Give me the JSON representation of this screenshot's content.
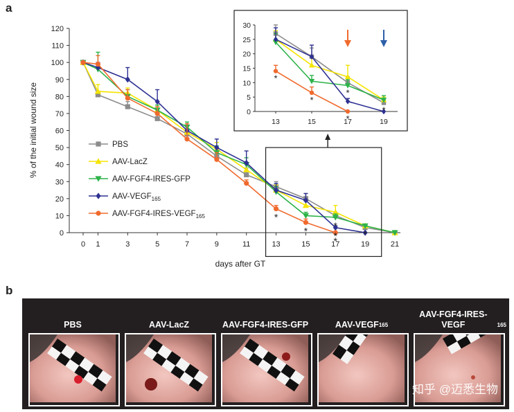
{
  "panel_letters": {
    "a": "a",
    "b": "b"
  },
  "chart_data": [
    {
      "type": "line",
      "xlabel": "days after GT",
      "ylabel": "% of the initial wound size",
      "x": [
        0,
        1,
        3,
        5,
        7,
        9,
        11,
        13,
        15,
        17,
        19,
        21
      ],
      "xticks": [
        "0",
        "1",
        "3",
        "5",
        "7",
        "9",
        "11",
        "13",
        "15",
        "17",
        "19",
        "21"
      ],
      "ylim": [
        0,
        120
      ],
      "yticks": [
        0,
        10,
        20,
        30,
        40,
        50,
        60,
        70,
        80,
        90,
        100,
        110,
        120
      ],
      "legend_position": "bottom-left",
      "series": [
        {
          "name": "PBS",
          "sub": "",
          "color": "#8c8c8c",
          "marker": "square",
          "x": [
            0,
            1,
            3,
            5,
            7,
            9,
            11,
            13,
            15,
            17,
            19,
            21
          ],
          "values": [
            100,
            81,
            74,
            67,
            58,
            45,
            34,
            27,
            20,
            10,
            3,
            0
          ],
          "err": [
            0,
            2,
            3,
            4,
            5,
            4,
            4,
            3,
            3,
            2,
            1,
            0
          ]
        },
        {
          "name": "AAV-LacZ",
          "sub": "",
          "color": "#f5e400",
          "marker": "triangle-up",
          "x": [
            0,
            1,
            3,
            5,
            7,
            9,
            11,
            13,
            15,
            17,
            19,
            21
          ],
          "values": [
            100,
            83,
            82,
            72,
            59,
            49,
            37,
            25,
            16,
            12,
            4,
            0
          ],
          "err": [
            0,
            4,
            3,
            3,
            4,
            4,
            4,
            3,
            3,
            4,
            1,
            0
          ]
        },
        {
          "name": "AAV-FGF4-IRES-GFP",
          "sub": "",
          "color": "#2db34a",
          "marker": "triangle-down",
          "x": [
            0,
            1,
            3,
            5,
            7,
            9,
            11,
            13,
            15,
            17,
            19,
            21
          ],
          "values": [
            100,
            96,
            80,
            72,
            62,
            47,
            40,
            24,
            10,
            9,
            4,
            0
          ],
          "err": [
            0,
            10,
            4,
            3,
            3,
            4,
            4,
            3,
            2,
            2,
            1,
            0
          ]
        },
        {
          "name": "AAV-VEGF",
          "sub": "165",
          "color": "#2e3192",
          "marker": "diamond",
          "x": [
            0,
            1,
            3,
            5,
            7,
            9,
            11,
            13,
            15,
            17,
            19
          ],
          "values": [
            100,
            97,
            90,
            77,
            60,
            50,
            41,
            25,
            19,
            3,
            0
          ],
          "err": [
            0,
            3,
            7,
            7,
            4,
            5,
            7,
            4,
            4,
            1,
            0
          ]
        },
        {
          "name": "AAV-FGF4-IRES-VEGF",
          "sub": "165",
          "color": "#f06a2d",
          "marker": "circle",
          "x": [
            0,
            1,
            3,
            5,
            7,
            9,
            11,
            13,
            15,
            17
          ],
          "values": [
            100,
            99,
            79,
            70,
            55,
            43,
            29,
            14,
            6,
            0
          ],
          "err": [
            0,
            5,
            5,
            4,
            9,
            4,
            2,
            2,
            2,
            0
          ]
        }
      ],
      "annotations": [
        {
          "x": 13,
          "y": 14,
          "text": "*"
        },
        {
          "x": 15,
          "y": 6,
          "text": "*"
        },
        {
          "x": 17,
          "y": 9,
          "text": "*"
        },
        {
          "x": 17,
          "y": 3,
          "text": "*"
        },
        {
          "x": 17,
          "y": 0,
          "text": "*"
        },
        {
          "x": 19,
          "y": 4,
          "text": "*"
        }
      ],
      "highlight_region": {
        "x": [
          12.3,
          20.1
        ],
        "y": [
          -14,
          50
        ]
      }
    },
    {
      "type": "line",
      "role": "inset zoom (days 13-19)",
      "x": [
        13,
        15,
        17,
        19
      ],
      "xticks": [
        "13",
        "15",
        "17",
        "19"
      ],
      "ylim": [
        0,
        30
      ],
      "yticks": [
        0,
        5,
        10,
        15,
        20,
        25,
        30
      ],
      "series": [
        {
          "name": "PBS",
          "color": "#8c8c8c",
          "marker": "square",
          "x": [
            13,
            15,
            17,
            19
          ],
          "values": [
            27,
            19,
            10,
            3
          ],
          "err": [
            3,
            3,
            2,
            1
          ]
        },
        {
          "name": "AAV-LacZ",
          "color": "#f5e400",
          "marker": "triangle-up",
          "x": [
            13,
            15,
            17,
            19
          ],
          "values": [
            25,
            16,
            12,
            4
          ],
          "err": [
            3,
            3,
            4,
            1
          ]
        },
        {
          "name": "AAV-FGF4-IRES-GFP",
          "color": "#2db34a",
          "marker": "triangle-down",
          "x": [
            13,
            15,
            17,
            19
          ],
          "values": [
            24,
            10.5,
            9,
            4
          ],
          "err": [
            3,
            2,
            2,
            1.5
          ]
        },
        {
          "name": "AAV-VEGF165",
          "color": "#2e3192",
          "marker": "diamond",
          "x": [
            13,
            15,
            17,
            19
          ],
          "values": [
            25,
            19,
            3.5,
            0
          ],
          "err": [
            4,
            4,
            1,
            0
          ]
        },
        {
          "name": "AAV-FGF4-IRES-VEGF165",
          "color": "#f06a2d",
          "marker": "circle",
          "x": [
            13,
            15,
            17
          ],
          "values": [
            14,
            6.5,
            0
          ],
          "err": [
            2,
            2,
            0
          ]
        }
      ],
      "annotations": [
        {
          "x": 13,
          "y": 14,
          "text": "*"
        },
        {
          "x": 15,
          "y": 6.5,
          "text": "*"
        },
        {
          "x": 17,
          "y": 9,
          "text": "*"
        },
        {
          "x": 17,
          "y": 0,
          "text": "*"
        },
        {
          "x": 19,
          "y": 3,
          "text": "*"
        }
      ],
      "arrows": [
        {
          "x": 17,
          "color": "#f06a2d"
        },
        {
          "x": 19,
          "color": "#2e5fa8"
        }
      ]
    }
  ],
  "panel_b": {
    "photos": [
      {
        "label": "PBS",
        "sub": ""
      },
      {
        "label": "AAV-LacZ",
        "sub": ""
      },
      {
        "label": "AAV-FGF4-IRES-GFP",
        "sub": ""
      },
      {
        "label": "AAV-VEGF",
        "sub": "165"
      },
      {
        "label": "AAV-FGF4-IRES-VEGF",
        "sub": "165"
      }
    ],
    "watermark": "知乎 @迈悉生物"
  }
}
